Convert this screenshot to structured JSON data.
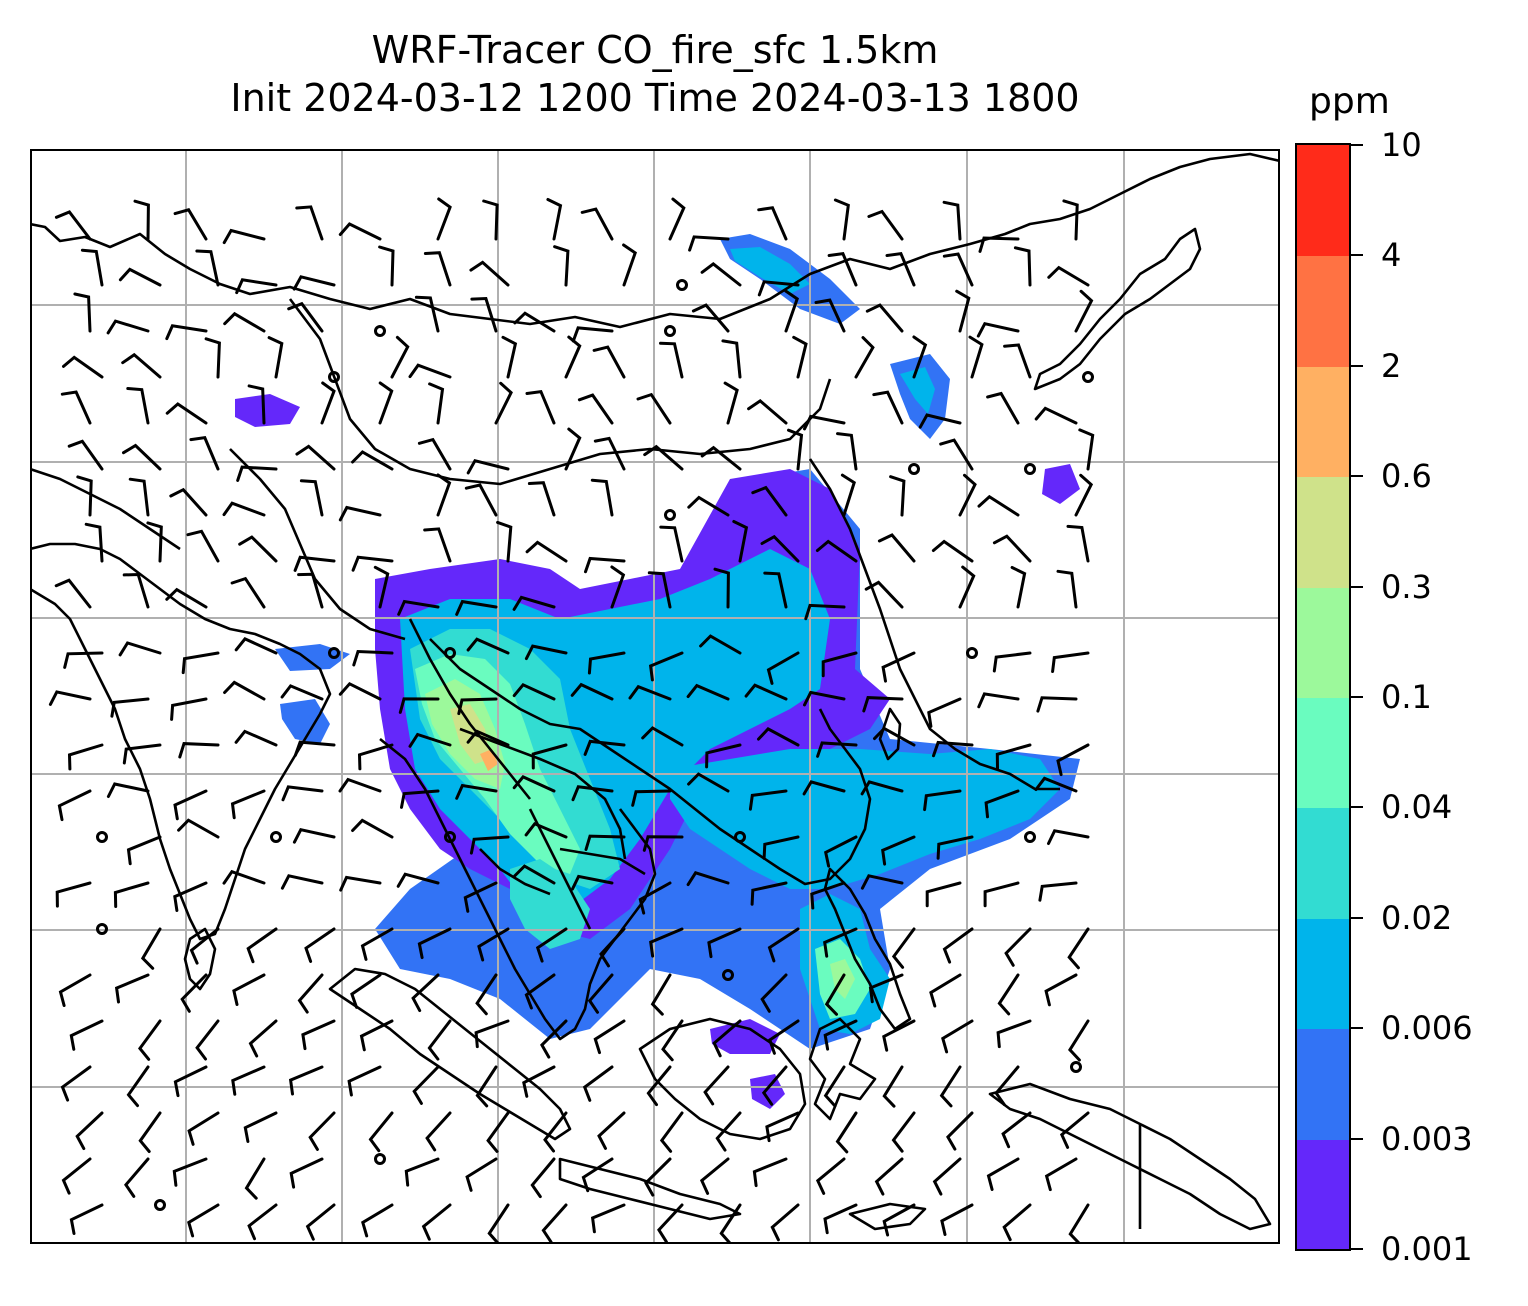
{
  "title": {
    "line1": "WRF-Tracer CO_fire_sfc 1.5km",
    "line2": "Init 2024-03-12 1200 Time 2024-03-13 1800"
  },
  "colorbar": {
    "units": "ppm",
    "ticks": [
      "0.001",
      "0.003",
      "0.006",
      "0.02",
      "0.04",
      "0.1",
      "0.3",
      "0.6",
      "2",
      "4",
      "10"
    ],
    "colors": [
      "#6428FA",
      "#3273F5",
      "#00B4EB",
      "#32DCD2",
      "#6AFCBF",
      "#9CF99B",
      "#CFE28A",
      "#FFB062",
      "#FF7243",
      "#FF2B1A"
    ]
  },
  "map": {
    "gridlines": true,
    "coastlines": true,
    "wind_barbs": true,
    "grid_color": "#b0b0b0",
    "coast_color": "#000000"
  }
}
